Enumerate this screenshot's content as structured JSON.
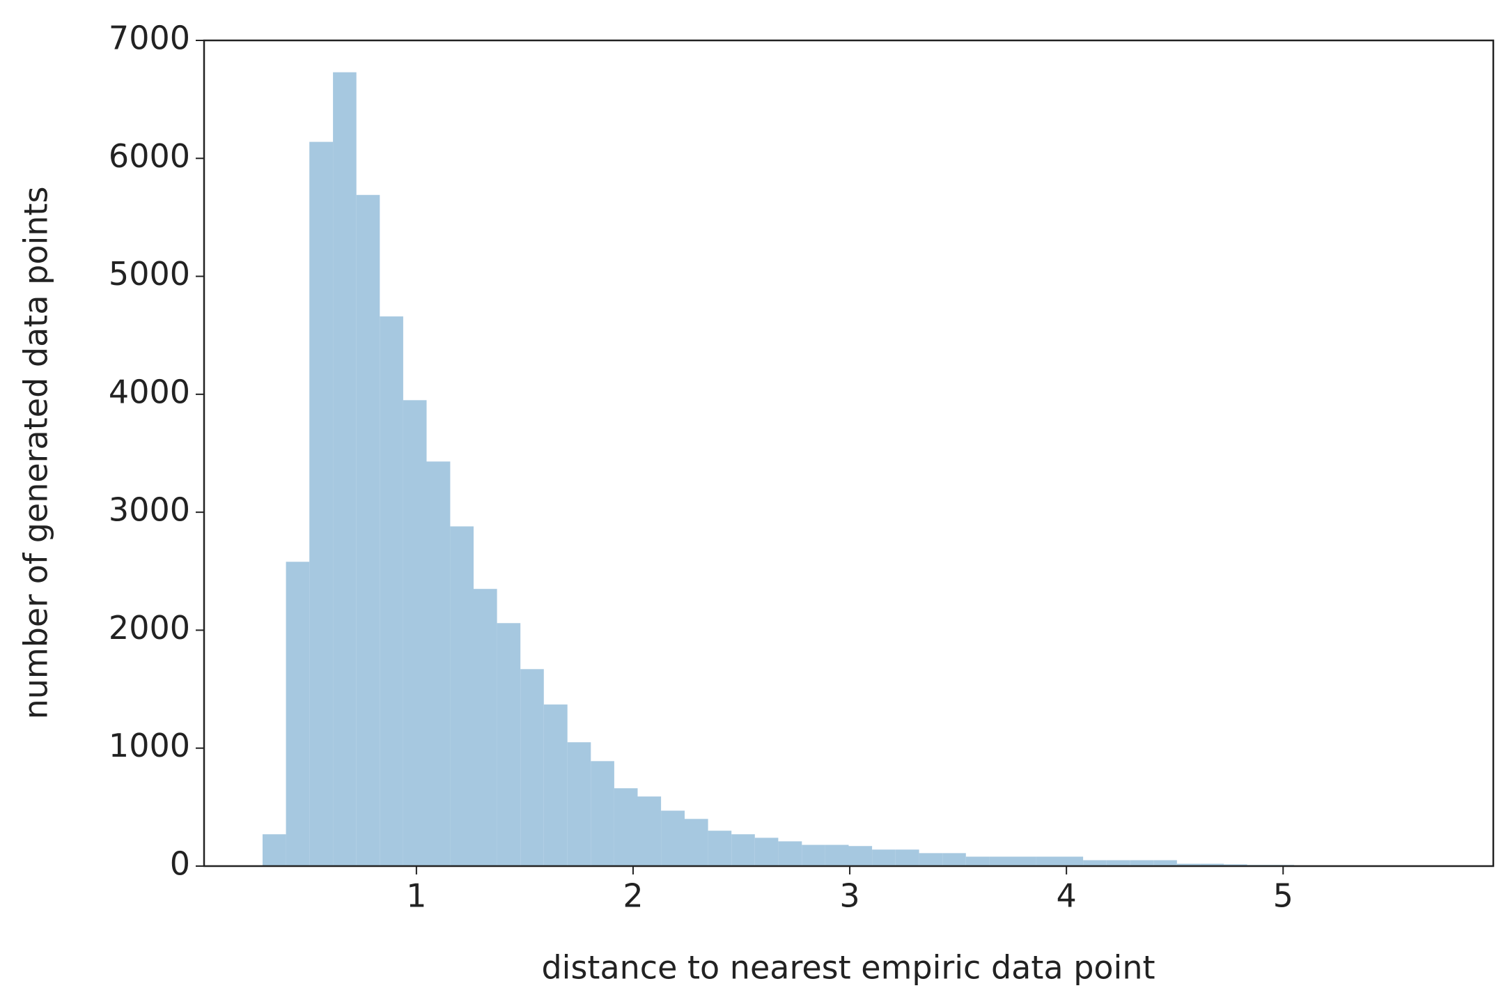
{
  "chart_data": {
    "type": "histogram",
    "xlabel": "distance to nearest empiric data point",
    "ylabel": "number of generated data points",
    "bins": [
      0.29,
      0.398,
      0.506,
      0.615,
      0.723,
      0.831,
      0.939,
      1.047,
      1.156,
      1.264,
      1.372,
      1.48,
      1.588,
      1.697,
      1.805,
      1.913,
      2.021,
      2.129,
      2.238,
      2.346,
      2.454,
      2.562,
      2.67,
      2.779,
      2.887,
      2.995,
      3.103,
      3.211,
      3.32,
      3.428,
      3.536,
      3.644,
      3.752,
      3.861,
      3.969,
      4.077,
      4.185,
      4.293,
      4.402,
      4.51,
      4.618,
      4.726,
      4.834,
      4.943,
      5.051,
      5.159,
      5.267,
      5.375,
      5.484,
      5.592,
      5.7
    ],
    "values": [
      270,
      2580,
      6140,
      6730,
      5690,
      4660,
      3950,
      3430,
      2880,
      2350,
      2060,
      1670,
      1370,
      1050,
      890,
      660,
      590,
      470,
      400,
      300,
      270,
      240,
      210,
      180,
      180,
      170,
      140,
      140,
      110,
      110,
      80,
      80,
      80,
      80,
      80,
      50,
      50,
      50,
      50,
      20,
      20,
      15,
      10,
      10,
      5,
      5,
      5,
      3,
      2,
      1
    ],
    "color": "#a6c8e0",
    "xlim": [
      0.02,
      5.97
    ],
    "ylim": [
      0,
      7000
    ],
    "xticks": [
      1,
      2,
      3,
      4,
      5
    ],
    "yticks": [
      0,
      1000,
      2000,
      3000,
      4000,
      5000,
      6000,
      7000
    ]
  }
}
